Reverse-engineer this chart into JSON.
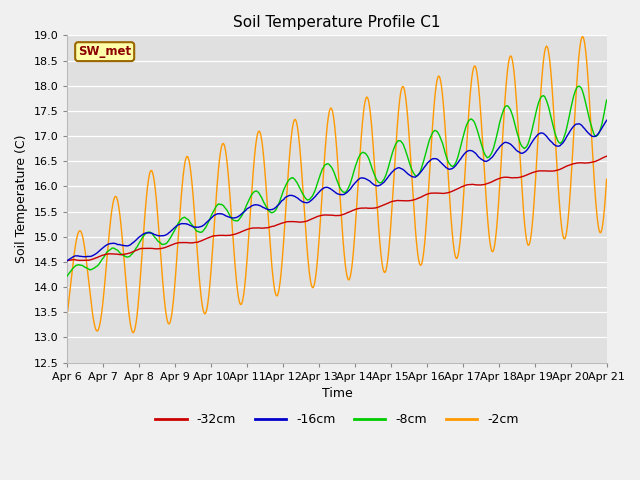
{
  "title": "Soil Temperature Profile C1",
  "xlabel": "Time",
  "ylabel": "Soil Temperature (C)",
  "ylim": [
    12.5,
    19.0
  ],
  "yticks": [
    12.5,
    13.0,
    13.5,
    14.0,
    14.5,
    15.0,
    15.5,
    16.0,
    16.5,
    17.0,
    17.5,
    18.0,
    18.5,
    19.0
  ],
  "xtick_labels": [
    "Apr 6",
    "Apr 7",
    "Apr 8",
    "Apr 9",
    "Apr 10",
    "Apr 11",
    "Apr 12",
    "Apr 13",
    "Apr 14",
    "Apr 15",
    "Apr 16",
    "Apr 17",
    "Apr 18",
    "Apr 19",
    "Apr 20",
    "Apr 21"
  ],
  "station_label": "SW_met",
  "line_colors": [
    "#cc0000",
    "#0000cc",
    "#00cc00",
    "#ff9900"
  ],
  "line_labels": [
    "-32cm",
    "-16cm",
    "-8cm",
    "-2cm"
  ],
  "fig_bg_color": "#f0f0f0",
  "axes_bg_color": "#e0e0e0",
  "grid_color": "#ffffff",
  "title_fontsize": 11,
  "label_fontsize": 9,
  "tick_fontsize": 8
}
